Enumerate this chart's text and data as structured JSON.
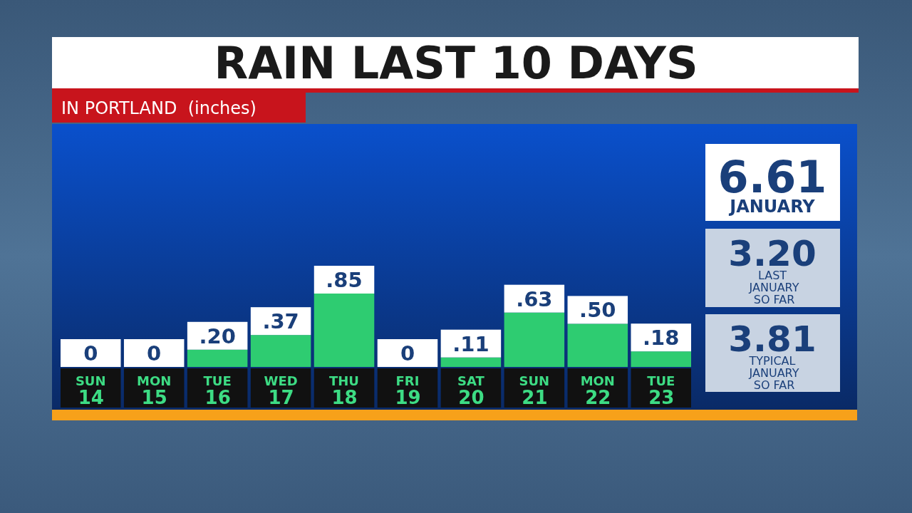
{
  "chart_data": {
    "type": "bar",
    "title": "RAIN LAST 10 DAYS",
    "subtitle": "IN PORTLAND  (inches)",
    "categories": [
      "SUN 14",
      "MON 15",
      "TUE 16",
      "WED 17",
      "THU 18",
      "FRI 19",
      "SAT 20",
      "SUN 21",
      "MON 22",
      "TUE 23"
    ],
    "values": [
      0,
      0,
      0.2,
      0.37,
      0.85,
      0,
      0.11,
      0.63,
      0.5,
      0.18
    ],
    "value_labels": [
      "0",
      "0",
      ".20",
      ".37",
      ".85",
      "0",
      ".11",
      ".63",
      ".50",
      ".18"
    ],
    "color": "#2ecc71",
    "annotations": [
      "6.61",
      "JANUARY",
      "3.20",
      "LAST\nJANUARY\nSO FAR",
      "3.81",
      "TYPICAL\nJANUARY\nSO FAR"
    ]
  }
}
